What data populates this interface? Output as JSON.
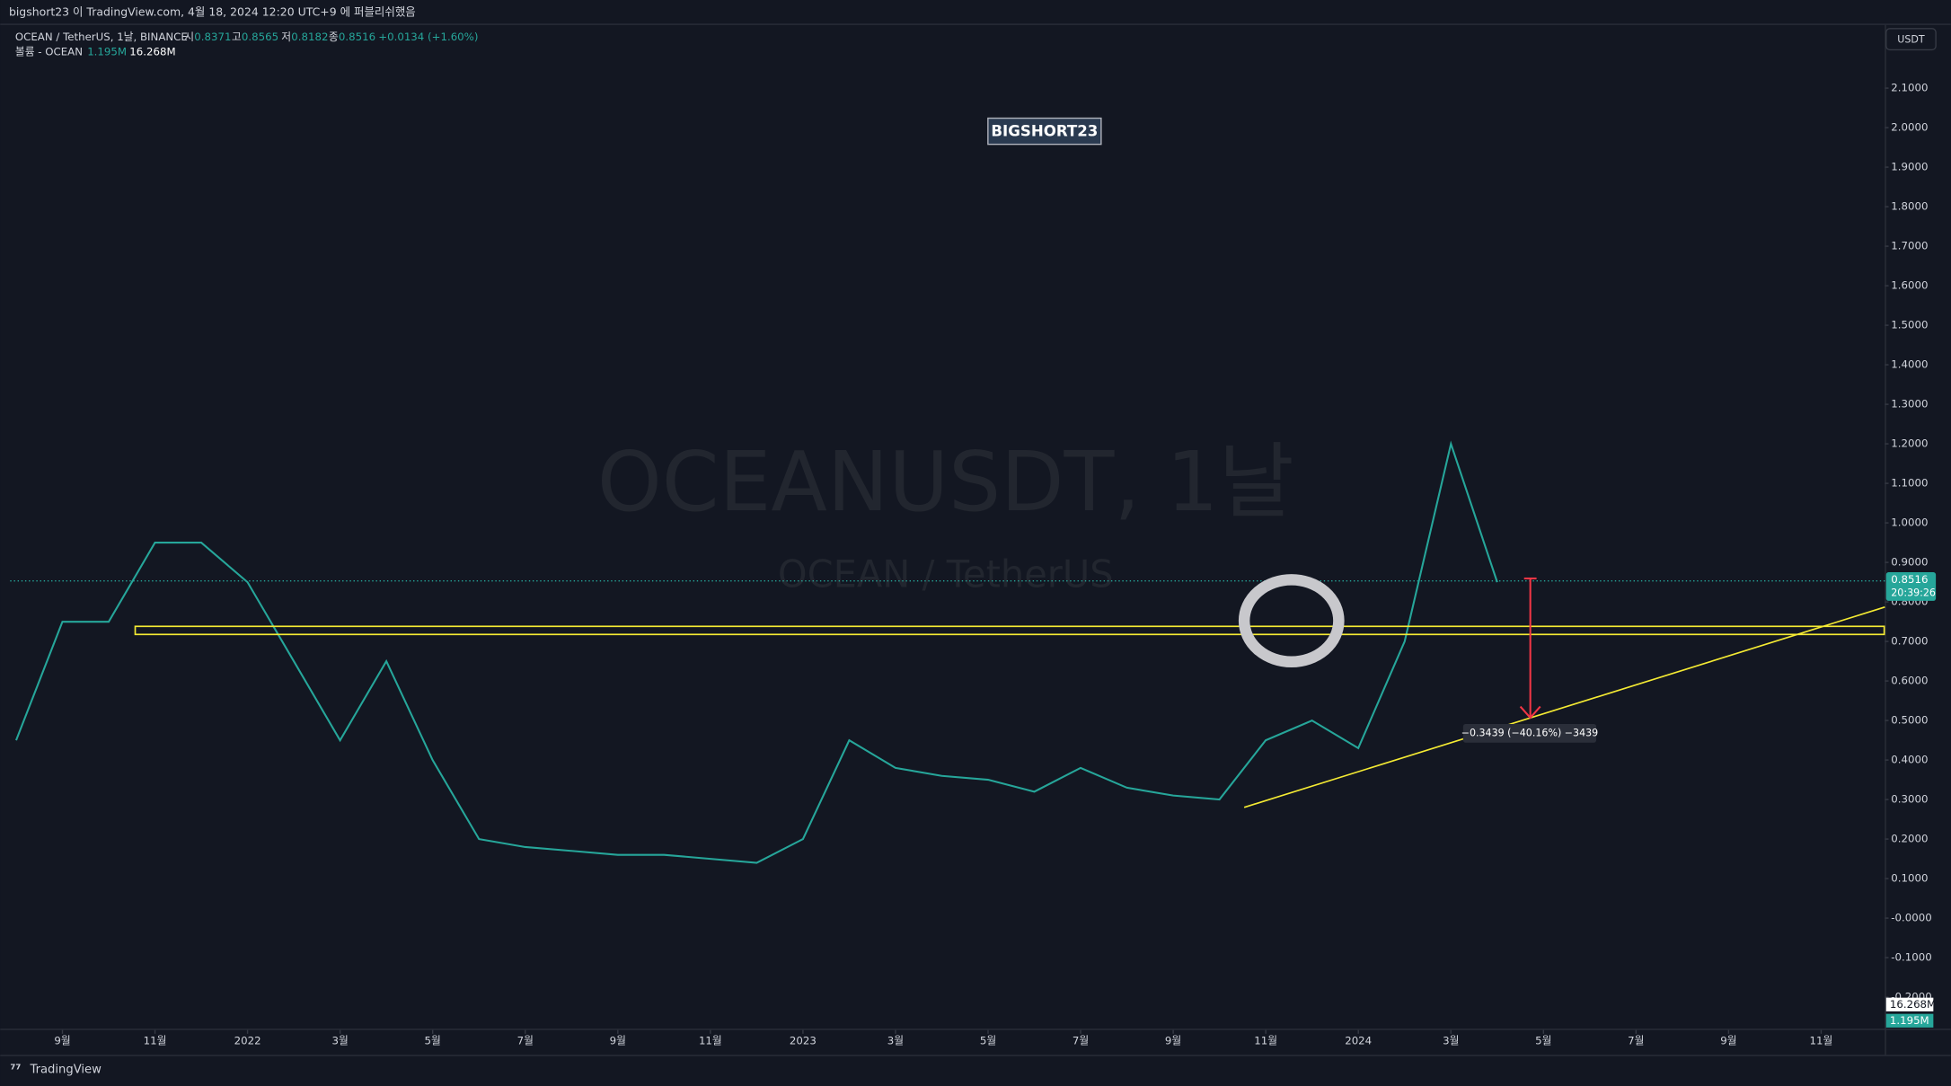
{
  "header": {
    "published": "bigshort23 이 TradingView.com, 4월 18, 2024 12:20 UTC+9 에 퍼블리쉬했음",
    "symbol": "OCEAN / TetherUS, 1날, BINANCE",
    "open_label": "시",
    "open": "0.8371",
    "high_label": "고",
    "high": "0.8565",
    "low_label": "저",
    "low": "0.8182",
    "close_label": "종",
    "close": "0.8516",
    "change": "+0.0134 (+1.60%)",
    "volume_label": "볼륨 - OCEAN",
    "volume": "1.195M",
    "volume_ma": "16.268M",
    "currency": "USDT",
    "author_tag": "BIGSHORT23",
    "watermark": "OCEANUSDT, 1날",
    "watermark_sub": "OCEAN / TetherUS",
    "price_tag": "0.8516",
    "countdown": "20:39:26",
    "measure": "−0.3439 (−40.16%) −3439",
    "volume_axis_ma": "16.268M",
    "volume_axis_last": "1.195M",
    "footer": "TradingView"
  },
  "chart_data": {
    "type": "line",
    "color": "#26a69a",
    "x": [
      "2021-08",
      "2021-09",
      "2021-10",
      "2021-11",
      "2021-12",
      "2022-01",
      "2022-02",
      "2022-03",
      "2022-04",
      "2022-05",
      "2022-06",
      "2022-07",
      "2022-08",
      "2022-09",
      "2022-10",
      "2022-11",
      "2022-12",
      "2023-01",
      "2023-02",
      "2023-03",
      "2023-04",
      "2023-05",
      "2023-06",
      "2023-07",
      "2023-08",
      "2023-09",
      "2023-10",
      "2023-11",
      "2023-12",
      "2024-01",
      "2024-02",
      "2024-03",
      "2024-04"
    ],
    "values": [
      0.45,
      0.75,
      0.75,
      0.95,
      0.95,
      0.85,
      0.65,
      0.45,
      0.65,
      0.4,
      0.2,
      0.18,
      0.17,
      0.16,
      0.16,
      0.15,
      0.14,
      0.2,
      0.45,
      0.38,
      0.36,
      0.35,
      0.32,
      0.38,
      0.33,
      0.31,
      0.3,
      0.45,
      0.5,
      0.43,
      0.7,
      1.2,
      0.85
    ],
    "xlim": [
      "2021-08",
      "2024-12"
    ],
    "xticks": [
      {
        "value": "2021-09",
        "label": "9월"
      },
      {
        "value": "2021-11",
        "label": "11월"
      },
      {
        "value": "2022-01",
        "label": "2022"
      },
      {
        "value": "2022-03",
        "label": "3월"
      },
      {
        "value": "2022-05",
        "label": "5월"
      },
      {
        "value": "2022-07",
        "label": "7월"
      },
      {
        "value": "2022-09",
        "label": "9월"
      },
      {
        "value": "2022-11",
        "label": "11월"
      },
      {
        "value": "2023-01",
        "label": "2023"
      },
      {
        "value": "2023-03",
        "label": "3월"
      },
      {
        "value": "2023-05",
        "label": "5월"
      },
      {
        "value": "2023-07",
        "label": "7월"
      },
      {
        "value": "2023-09",
        "label": "9월"
      },
      {
        "value": "2023-11",
        "label": "11월"
      },
      {
        "value": "2024-01",
        "label": "2024"
      },
      {
        "value": "2024-03",
        "label": "3월"
      },
      {
        "value": "2024-05",
        "label": "5월"
      },
      {
        "value": "2024-07",
        "label": "7월"
      },
      {
        "value": "2024-09",
        "label": "9월"
      },
      {
        "value": "2024-11",
        "label": "11월"
      }
    ],
    "ylim": [
      -0.28,
      2.26
    ],
    "yticks": [
      {
        "value": 2.1,
        "label": "2.1000"
      },
      {
        "value": 2.0,
        "label": "2.0000"
      },
      {
        "value": 1.9,
        "label": "1.9000"
      },
      {
        "value": 1.8,
        "label": "1.8000"
      },
      {
        "value": 1.7,
        "label": "1.7000"
      },
      {
        "value": 1.6,
        "label": "1.6000"
      },
      {
        "value": 1.5,
        "label": "1.5000"
      },
      {
        "value": 1.4,
        "label": "1.4000"
      },
      {
        "value": 1.3,
        "label": "1.3000"
      },
      {
        "value": 1.2,
        "label": "1.2000"
      },
      {
        "value": 1.1,
        "label": "1.1000"
      },
      {
        "value": 1.0,
        "label": "1.0000"
      },
      {
        "value": 0.9,
        "label": "0.9000"
      },
      {
        "value": 0.8,
        "label": "0.8000"
      },
      {
        "value": 0.7,
        "label": "0.7000"
      },
      {
        "value": 0.6,
        "label": "0.6000"
      },
      {
        "value": 0.5,
        "label": "0.5000"
      },
      {
        "value": 0.4,
        "label": "0.4000"
      },
      {
        "value": 0.3,
        "label": "0.3000"
      },
      {
        "value": 0.2,
        "label": "0.2000"
      },
      {
        "value": 0.1,
        "label": "0.1000"
      },
      {
        "value": 0,
        "label": "-0.0000"
      },
      {
        "value": -0.1,
        "label": "-0.1000"
      },
      {
        "value": -0.2,
        "label": "-0.2000"
      }
    ]
  }
}
